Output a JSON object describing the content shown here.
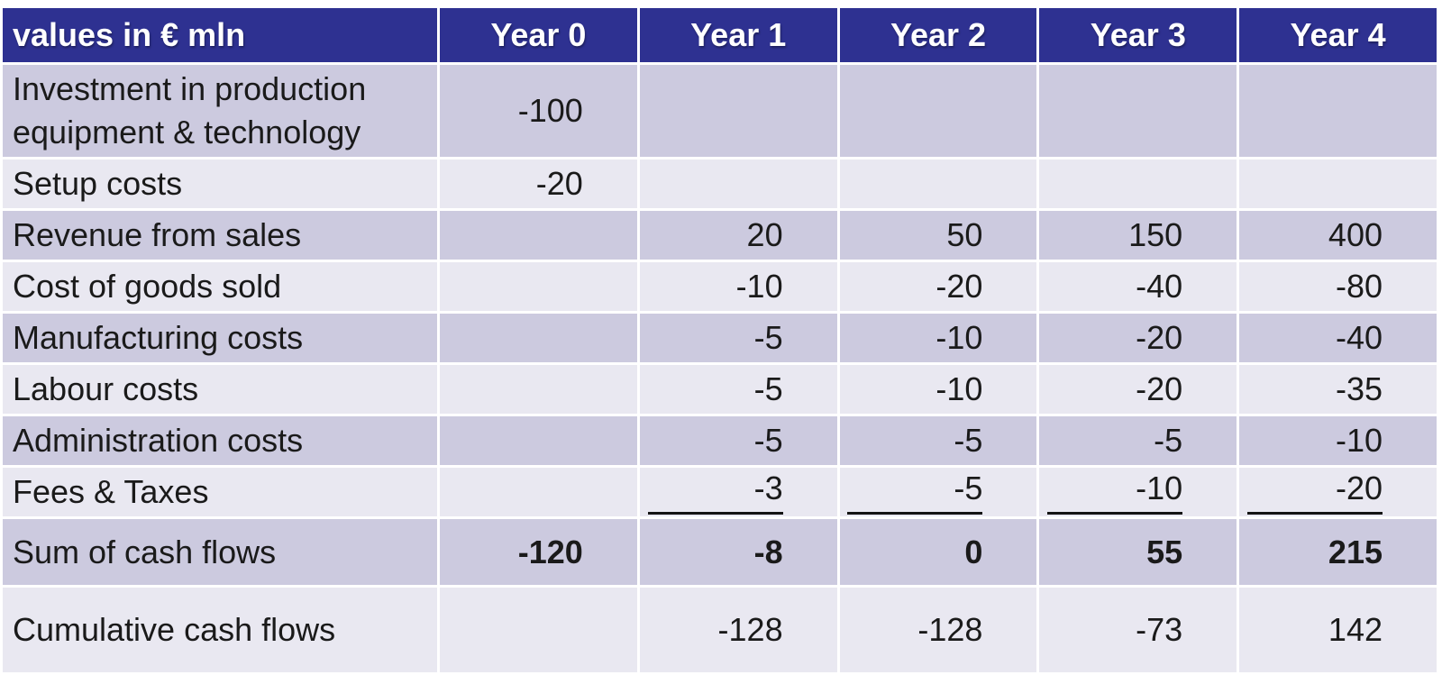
{
  "chart_data": {
    "type": "table",
    "corner_label": "values in € mln",
    "columns": [
      "Year 0",
      "Year 1",
      "Year 2",
      "Year 3",
      "Year 4"
    ],
    "rows": [
      {
        "label": "Investment in production equipment & technology",
        "values": [
          -100,
          null,
          null,
          null,
          null
        ]
      },
      {
        "label": "Setup costs",
        "values": [
          -20,
          null,
          null,
          null,
          null
        ]
      },
      {
        "label": "Revenue from sales",
        "values": [
          null,
          20,
          50,
          150,
          400
        ]
      },
      {
        "label": "Cost of goods sold",
        "values": [
          null,
          -10,
          -20,
          -40,
          -80
        ]
      },
      {
        "label": "Manufacturing costs",
        "values": [
          null,
          -5,
          -10,
          -20,
          -40
        ]
      },
      {
        "label": "Labour costs",
        "values": [
          null,
          -5,
          -10,
          -20,
          -35
        ]
      },
      {
        "label": "Administration costs",
        "values": [
          null,
          -5,
          -5,
          -5,
          -10
        ]
      },
      {
        "label": "Fees & Taxes",
        "values": [
          null,
          -3,
          -5,
          -10,
          -20
        ],
        "underlined": true
      },
      {
        "label": "Sum of cash flows",
        "values": [
          -120,
          -8,
          0,
          55,
          215
        ],
        "bold": true
      },
      {
        "label": "Cumulative cash flows",
        "values": [
          null,
          -128,
          -128,
          -73,
          142
        ]
      }
    ]
  },
  "colors": {
    "header_bg": "#2e3191",
    "row_dark": "#cccadf",
    "row_light": "#e9e8f1",
    "header_text": "#ffffff",
    "body_text": "#1a1a1a",
    "sum_line": "#141414"
  }
}
